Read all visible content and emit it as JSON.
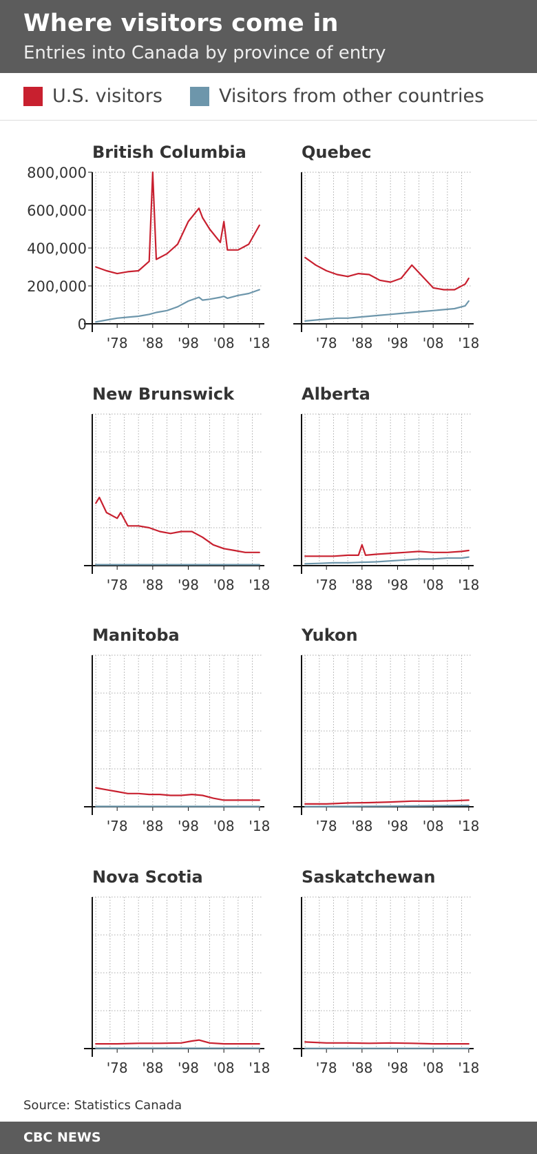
{
  "header": {
    "title": "Where visitors come in",
    "subtitle": "Entries into Canada by province of entry"
  },
  "legend": {
    "items": [
      {
        "label": "U.S. visitors",
        "color": "#c8202f"
      },
      {
        "label": "Visitors from other countries",
        "color": "#6d96ab"
      }
    ]
  },
  "source": "Source: Statistics Canada",
  "footer": {
    "brand": "CBC NEWS"
  },
  "chart_data": [
    {
      "type": "line",
      "title": "British Columbia",
      "x": [
        1972,
        1975,
        1978,
        1981,
        1984,
        1987,
        1988,
        1989,
        1992,
        1995,
        1998,
        2001,
        2002,
        2004,
        2007,
        2008,
        2009,
        2012,
        2015,
        2018
      ],
      "series": [
        {
          "name": "U.S. visitors",
          "values": [
            300000,
            280000,
            265000,
            275000,
            280000,
            330000,
            800000,
            340000,
            370000,
            420000,
            540000,
            610000,
            560000,
            500000,
            430000,
            540000,
            390000,
            390000,
            420000,
            520000
          ]
        },
        {
          "name": "Visitors from other countries",
          "values": [
            10000,
            20000,
            30000,
            35000,
            40000,
            50000,
            55000,
            60000,
            70000,
            90000,
            120000,
            140000,
            125000,
            130000,
            140000,
            145000,
            135000,
            150000,
            160000,
            180000
          ]
        }
      ],
      "y_ticks": [
        "800,000",
        "600,000",
        "400,000",
        "200,000",
        "0"
      ],
      "ylim": [
        0,
        800000
      ],
      "x_ticks": [
        "'78",
        "'88",
        "'98",
        "'08",
        "'18"
      ],
      "grid": true
    },
    {
      "type": "line",
      "title": "Quebec",
      "x": [
        1972,
        1975,
        1978,
        1981,
        1984,
        1987,
        1990,
        1993,
        1996,
        1999,
        2002,
        2005,
        2008,
        2011,
        2014,
        2017,
        2018
      ],
      "series": [
        {
          "name": "U.S. visitors",
          "values": [
            350000,
            310000,
            280000,
            260000,
            250000,
            265000,
            260000,
            230000,
            220000,
            240000,
            310000,
            250000,
            190000,
            180000,
            180000,
            210000,
            240000
          ]
        },
        {
          "name": "Visitors from other countries",
          "values": [
            15000,
            20000,
            25000,
            30000,
            30000,
            35000,
            40000,
            45000,
            50000,
            55000,
            60000,
            65000,
            70000,
            75000,
            80000,
            95000,
            120000
          ]
        }
      ],
      "ylim": [
        0,
        800000
      ],
      "x_ticks": [
        "'78",
        "'88",
        "'98",
        "'08",
        "'18"
      ],
      "grid": true
    },
    {
      "type": "line",
      "title": "New Brunswick",
      "x": [
        1972,
        1973,
        1975,
        1978,
        1979,
        1981,
        1984,
        1987,
        1990,
        1993,
        1996,
        1999,
        2002,
        2005,
        2008,
        2011,
        2014,
        2018
      ],
      "series": [
        {
          "name": "U.S. visitors",
          "values": [
            330000,
            360000,
            280000,
            250000,
            280000,
            210000,
            210000,
            200000,
            180000,
            170000,
            180000,
            180000,
            150000,
            110000,
            90000,
            80000,
            70000,
            70000
          ]
        },
        {
          "name": "Visitors from other countries",
          "values": [
            5000,
            5000,
            5000,
            5000,
            5000,
            5000,
            5000,
            5000,
            5000,
            5000,
            5000,
            5000,
            5000,
            5000,
            5000,
            5000,
            5000,
            5000
          ]
        }
      ],
      "ylim": [
        0,
        800000
      ],
      "x_ticks": [
        "'78",
        "'88",
        "'98",
        "'08",
        "'18"
      ],
      "grid": true
    },
    {
      "type": "line",
      "title": "Alberta",
      "x": [
        1972,
        1976,
        1980,
        1984,
        1987,
        1988,
        1989,
        1992,
        1996,
        2000,
        2004,
        2008,
        2012,
        2016,
        2018
      ],
      "series": [
        {
          "name": "U.S. visitors",
          "values": [
            50000,
            50000,
            50000,
            55000,
            55000,
            110000,
            55000,
            60000,
            65000,
            70000,
            75000,
            70000,
            70000,
            75000,
            80000
          ]
        },
        {
          "name": "Visitors from other countries",
          "values": [
            10000,
            12000,
            15000,
            15000,
            17000,
            18000,
            18000,
            20000,
            25000,
            30000,
            35000,
            35000,
            40000,
            40000,
            45000
          ]
        }
      ],
      "ylim": [
        0,
        800000
      ],
      "x_ticks": [
        "'78",
        "'88",
        "'98",
        "'08",
        "'18"
      ],
      "grid": true
    },
    {
      "type": "line",
      "title": "Manitoba",
      "x": [
        1972,
        1975,
        1978,
        1981,
        1984,
        1987,
        1990,
        1993,
        1996,
        1999,
        2002,
        2005,
        2008,
        2011,
        2014,
        2018
      ],
      "series": [
        {
          "name": "U.S. visitors",
          "values": [
            100000,
            90000,
            80000,
            70000,
            70000,
            65000,
            65000,
            60000,
            60000,
            65000,
            60000,
            45000,
            35000,
            35000,
            35000,
            35000
          ]
        },
        {
          "name": "Visitors from other countries",
          "values": [
            2000,
            2000,
            2000,
            2000,
            2000,
            2000,
            2000,
            2000,
            2000,
            2000,
            2000,
            2000,
            2000,
            2000,
            2000,
            2000
          ]
        }
      ],
      "ylim": [
        0,
        800000
      ],
      "x_ticks": [
        "'78",
        "'88",
        "'98",
        "'08",
        "'18"
      ],
      "grid": true
    },
    {
      "type": "line",
      "title": "Yukon",
      "x": [
        1972,
        1978,
        1984,
        1990,
        1996,
        2002,
        2008,
        2014,
        2018
      ],
      "series": [
        {
          "name": "U.S. visitors",
          "values": [
            15000,
            15000,
            20000,
            22000,
            25000,
            30000,
            30000,
            32000,
            35000
          ]
        },
        {
          "name": "Visitors from other countries",
          "values": [
            1000,
            1500,
            2000,
            2500,
            3000,
            4000,
            5000,
            6000,
            7000
          ]
        }
      ],
      "ylim": [
        0,
        800000
      ],
      "x_ticks": [
        "'78",
        "'88",
        "'98",
        "'08",
        "'18"
      ],
      "grid": true
    },
    {
      "type": "line",
      "title": "Nova Scotia",
      "x": [
        1972,
        1978,
        1984,
        1990,
        1996,
        1999,
        2001,
        2004,
        2008,
        2012,
        2018
      ],
      "series": [
        {
          "name": "U.S. visitors",
          "values": [
            25000,
            25000,
            28000,
            28000,
            30000,
            40000,
            45000,
            30000,
            25000,
            25000,
            25000
          ]
        },
        {
          "name": "Visitors from other countries",
          "values": [
            2000,
            2000,
            2000,
            2000,
            2000,
            2000,
            2000,
            2000,
            2000,
            2000,
            2000
          ]
        }
      ],
      "ylim": [
        0,
        800000
      ],
      "x_ticks": [
        "'78",
        "'88",
        "'98",
        "'08",
        "'18"
      ],
      "grid": true
    },
    {
      "type": "line",
      "title": "Saskatchewan",
      "x": [
        1972,
        1978,
        1984,
        1990,
        1996,
        2002,
        2008,
        2014,
        2018
      ],
      "series": [
        {
          "name": "U.S. visitors",
          "values": [
            35000,
            30000,
            30000,
            28000,
            30000,
            28000,
            25000,
            25000,
            25000
          ]
        },
        {
          "name": "Visitors from other countries",
          "values": [
            1000,
            1000,
            1000,
            1000,
            1000,
            1000,
            1000,
            1000,
            1000
          ]
        }
      ],
      "ylim": [
        0,
        800000
      ],
      "x_ticks": [
        "'78",
        "'88",
        "'98",
        "'08",
        "'18"
      ],
      "grid": true
    }
  ]
}
